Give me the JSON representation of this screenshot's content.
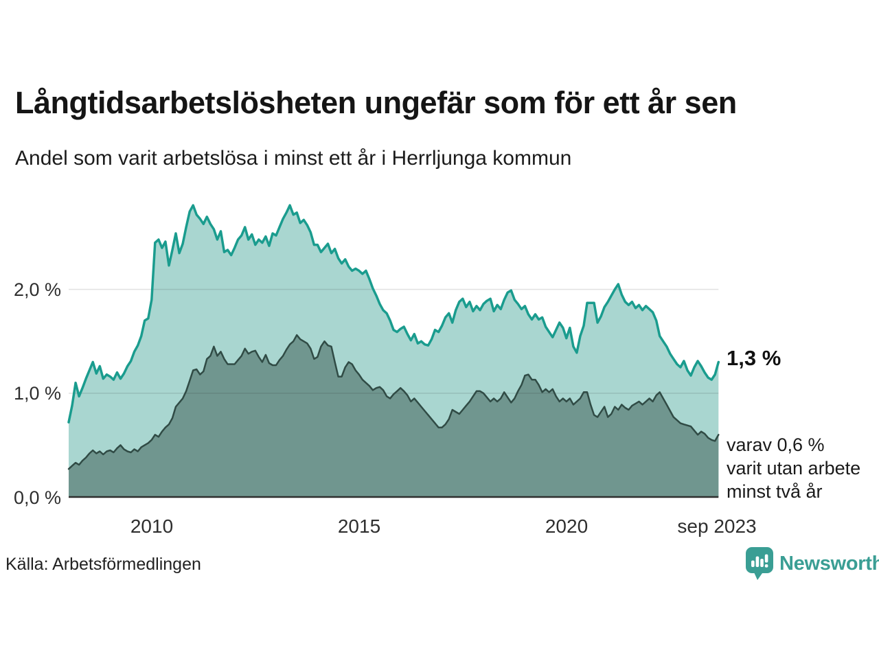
{
  "title": "Långtidsarbetslösheten ungefär som för ett år sen",
  "subtitle": "Andel som varit arbetslösa i minst ett år i Herrljunga kommun",
  "source": "Källa: Arbetsförmedlingen",
  "logo": {
    "text": "Newsworthy"
  },
  "annotations": {
    "latest_total": "1,3 %",
    "latest_two_year_line1": "varav 0,6 %",
    "latest_two_year_line2": "varit utan arbete",
    "latest_two_year_line3": "minst två år"
  },
  "colors": {
    "series_total_line": "#1a9c8e",
    "series_total_fill": "#a9d6d0",
    "series_two_year_line": "#304b45",
    "series_two_year_fill": "#70968f",
    "gridline": "rgba(40,40,40,0.13)",
    "baseline": "#2f2f2f",
    "brand_teal": "#3a9e94"
  },
  "chart_data": {
    "type": "area",
    "title": "Långtidsarbetslösheten ungefär som för ett år sen",
    "subtitle": "Andel som varit arbetslösa i minst ett år i Herrljunga kommun",
    "unit": "%",
    "x_monthly_start": "2008-01",
    "x_monthly_end": "2023-09",
    "ylim": [
      0,
      2.9
    ],
    "grid": true,
    "legend": "none",
    "y_ticks": [
      {
        "value": 0,
        "label": "0,0 %"
      },
      {
        "value": 1,
        "label": "1,0 %"
      },
      {
        "value": 2,
        "label": "2,0 %"
      }
    ],
    "x_ticks": [
      {
        "year": 2010,
        "label": "2010"
      },
      {
        "year": 2015,
        "label": "2015"
      },
      {
        "year": 2020,
        "label": "2020"
      },
      {
        "year": 2023.67,
        "label": "sep 2023"
      }
    ],
    "series": [
      {
        "name": "Andel arbetslösa minst ett år",
        "latest_label": "1,3 %",
        "values": [
          0.72,
          0.88,
          1.1,
          0.97,
          1.05,
          1.14,
          1.22,
          1.3,
          1.19,
          1.26,
          1.14,
          1.18,
          1.16,
          1.13,
          1.2,
          1.14,
          1.19,
          1.26,
          1.31,
          1.4,
          1.46,
          1.55,
          1.7,
          1.72,
          1.9,
          2.45,
          2.48,
          2.4,
          2.46,
          2.23,
          2.38,
          2.54,
          2.35,
          2.44,
          2.6,
          2.75,
          2.81,
          2.72,
          2.68,
          2.63,
          2.7,
          2.63,
          2.58,
          2.48,
          2.56,
          2.36,
          2.38,
          2.33,
          2.4,
          2.48,
          2.52,
          2.6,
          2.48,
          2.53,
          2.43,
          2.48,
          2.45,
          2.51,
          2.42,
          2.54,
          2.52,
          2.6,
          2.68,
          2.74,
          2.81,
          2.72,
          2.74,
          2.64,
          2.67,
          2.62,
          2.55,
          2.43,
          2.43,
          2.36,
          2.4,
          2.44,
          2.35,
          2.39,
          2.3,
          2.25,
          2.29,
          2.22,
          2.18,
          2.2,
          2.18,
          2.15,
          2.18,
          2.1,
          2.01,
          1.94,
          1.86,
          1.8,
          1.77,
          1.7,
          1.61,
          1.59,
          1.62,
          1.64,
          1.57,
          1.51,
          1.57,
          1.48,
          1.5,
          1.47,
          1.46,
          1.52,
          1.61,
          1.59,
          1.65,
          1.73,
          1.77,
          1.68,
          1.8,
          1.88,
          1.91,
          1.83,
          1.88,
          1.79,
          1.84,
          1.8,
          1.86,
          1.89,
          1.91,
          1.79,
          1.85,
          1.81,
          1.9,
          1.97,
          1.99,
          1.9,
          1.86,
          1.81,
          1.84,
          1.76,
          1.71,
          1.76,
          1.71,
          1.73,
          1.64,
          1.59,
          1.54,
          1.61,
          1.68,
          1.63,
          1.53,
          1.63,
          1.45,
          1.39,
          1.55,
          1.65,
          1.87,
          1.87,
          1.87,
          1.68,
          1.74,
          1.83,
          1.88,
          1.94,
          2.0,
          2.05,
          1.95,
          1.88,
          1.85,
          1.88,
          1.82,
          1.85,
          1.8,
          1.84,
          1.81,
          1.78,
          1.7,
          1.55,
          1.5,
          1.45,
          1.38,
          1.33,
          1.28,
          1.25,
          1.31,
          1.22,
          1.17,
          1.25,
          1.31,
          1.26,
          1.2,
          1.15,
          1.13,
          1.18,
          1.3
        ]
      },
      {
        "name": "varav utan arbete minst två år",
        "latest_label": "0,6 %",
        "values": [
          0.27,
          0.3,
          0.33,
          0.31,
          0.35,
          0.38,
          0.42,
          0.45,
          0.42,
          0.44,
          0.41,
          0.44,
          0.45,
          0.43,
          0.47,
          0.5,
          0.46,
          0.44,
          0.43,
          0.46,
          0.44,
          0.48,
          0.5,
          0.52,
          0.55,
          0.6,
          0.58,
          0.63,
          0.67,
          0.7,
          0.76,
          0.87,
          0.91,
          0.95,
          1.02,
          1.12,
          1.22,
          1.23,
          1.18,
          1.21,
          1.33,
          1.36,
          1.45,
          1.36,
          1.4,
          1.33,
          1.28,
          1.28,
          1.28,
          1.32,
          1.36,
          1.43,
          1.38,
          1.4,
          1.41,
          1.35,
          1.3,
          1.37,
          1.29,
          1.27,
          1.27,
          1.32,
          1.36,
          1.42,
          1.47,
          1.5,
          1.56,
          1.52,
          1.5,
          1.48,
          1.43,
          1.33,
          1.35,
          1.45,
          1.5,
          1.46,
          1.45,
          1.3,
          1.16,
          1.16,
          1.25,
          1.3,
          1.28,
          1.22,
          1.18,
          1.13,
          1.1,
          1.07,
          1.03,
          1.05,
          1.06,
          1.03,
          0.97,
          0.95,
          0.99,
          1.02,
          1.05,
          1.02,
          0.98,
          0.92,
          0.95,
          0.91,
          0.87,
          0.83,
          0.79,
          0.75,
          0.71,
          0.67,
          0.67,
          0.7,
          0.75,
          0.84,
          0.82,
          0.8,
          0.84,
          0.88,
          0.92,
          0.97,
          1.02,
          1.02,
          1.0,
          0.96,
          0.92,
          0.95,
          0.92,
          0.95,
          1.01,
          0.96,
          0.91,
          0.95,
          1.02,
          1.08,
          1.17,
          1.18,
          1.13,
          1.13,
          1.08,
          1.01,
          1.04,
          1.01,
          1.04,
          0.97,
          0.92,
          0.95,
          0.92,
          0.95,
          0.89,
          0.92,
          0.95,
          1.01,
          1.01,
          0.89,
          0.79,
          0.77,
          0.82,
          0.87,
          0.77,
          0.8,
          0.87,
          0.84,
          0.89,
          0.86,
          0.84,
          0.88,
          0.9,
          0.92,
          0.89,
          0.92,
          0.95,
          0.92,
          0.98,
          1.01,
          0.95,
          0.89,
          0.83,
          0.77,
          0.74,
          0.71,
          0.7,
          0.69,
          0.68,
          0.64,
          0.6,
          0.63,
          0.61,
          0.57,
          0.55,
          0.54,
          0.6
        ]
      }
    ]
  }
}
